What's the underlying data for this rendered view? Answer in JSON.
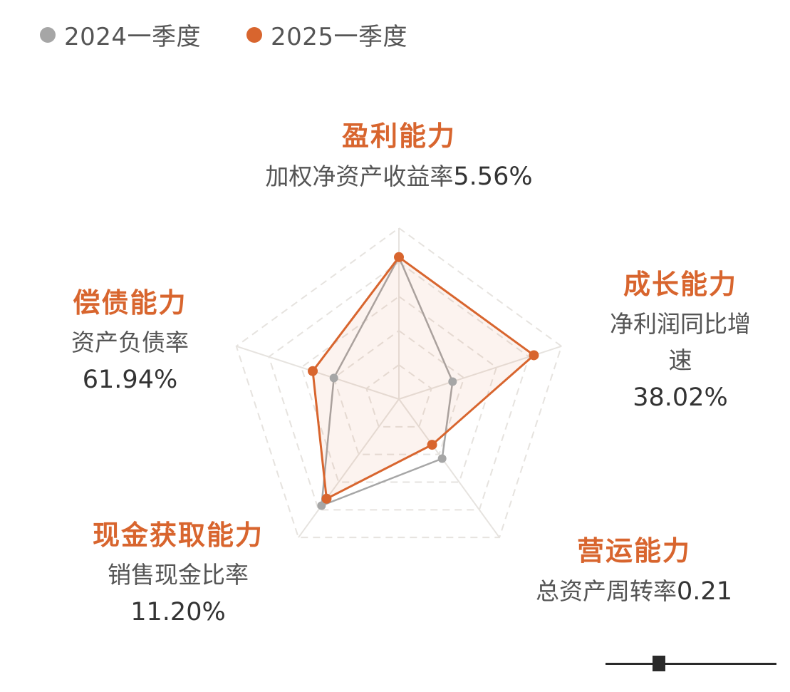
{
  "legend": [
    {
      "label": "2024一季度",
      "color": "#a6a6a6"
    },
    {
      "label": "2025一季度",
      "color": "#d8652e"
    }
  ],
  "axes": {
    "profitability": {
      "title": "盈利能力",
      "metric": "加权净资产收益率",
      "value": "5.56%"
    },
    "growth": {
      "title": "成长能力",
      "metric_line1": "净利润同比增",
      "metric_line2": "速",
      "value": "38.02%"
    },
    "operation": {
      "title": "营运能力",
      "metric": "总资产周转率",
      "value": "0.21"
    },
    "cash": {
      "title": "现金获取能力",
      "metric": "销售现金比率",
      "value": "11.20%"
    },
    "solvency": {
      "title": "偿债能力",
      "metric": "资产负债率",
      "value": "61.94%"
    }
  },
  "colors": {
    "accent": "#d8652e",
    "prior": "#a6a6a6",
    "grid": "#e6e3df",
    "title": "#d8652e"
  },
  "chart_data": {
    "type": "radar",
    "categories": [
      "盈利能力",
      "成长能力",
      "营运能力",
      "现金获取能力",
      "偿债能力"
    ],
    "series": [
      {
        "name": "2024一季度",
        "values": [
          0.83,
          0.33,
          0.43,
          0.77,
          0.4
        ]
      },
      {
        "name": "2025一季度",
        "values": [
          0.83,
          0.83,
          0.33,
          0.72,
          0.53
        ]
      }
    ],
    "rlim": [
      0,
      1
    ],
    "grid_levels": 5,
    "legend_position": "top-left"
  }
}
